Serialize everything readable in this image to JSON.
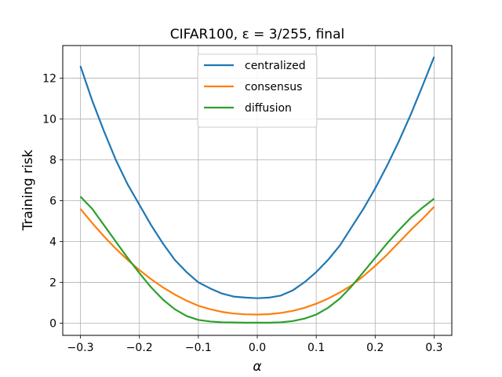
{
  "chart_data": {
    "type": "line",
    "title": "CIFAR100, ε = 3/255, final",
    "xlabel": "α",
    "ylabel": "Training risk",
    "xlim": [
      -0.33,
      0.33
    ],
    "ylim": [
      -0.6,
      13.6
    ],
    "xticks": [
      -0.3,
      -0.2,
      -0.1,
      0.0,
      0.1,
      0.2,
      0.3
    ],
    "xtick_labels": [
      "−0.3",
      "−0.2",
      "−0.1",
      "0.0",
      "0.1",
      "0.2",
      "0.3"
    ],
    "yticks": [
      0,
      2,
      4,
      6,
      8,
      10,
      12
    ],
    "ytick_labels": [
      "0",
      "2",
      "4",
      "6",
      "8",
      "10",
      "12"
    ],
    "grid": true,
    "legend_position": "top-center",
    "x": [
      -0.3,
      -0.28,
      -0.26,
      -0.24,
      -0.22,
      -0.2,
      -0.18,
      -0.16,
      -0.14,
      -0.12,
      -0.1,
      -0.08,
      -0.06,
      -0.04,
      -0.02,
      0.0,
      0.02,
      0.04,
      0.06,
      0.08,
      0.1,
      0.12,
      0.14,
      0.16,
      0.18,
      0.2,
      0.22,
      0.24,
      0.26,
      0.28,
      0.3
    ],
    "series": [
      {
        "name": "centralized",
        "color": "#1f77b4",
        "values": [
          12.6,
          10.9,
          9.4,
          8.0,
          6.8,
          5.8,
          4.8,
          3.9,
          3.1,
          2.5,
          2.0,
          1.7,
          1.45,
          1.3,
          1.25,
          1.22,
          1.25,
          1.35,
          1.6,
          2.0,
          2.5,
          3.1,
          3.8,
          4.7,
          5.6,
          6.6,
          7.7,
          8.9,
          10.2,
          11.6,
          13.05
        ]
      },
      {
        "name": "consensus",
        "color": "#ff7f0e",
        "values": [
          5.6,
          4.9,
          4.25,
          3.65,
          3.1,
          2.6,
          2.15,
          1.75,
          1.4,
          1.1,
          0.85,
          0.68,
          0.55,
          0.47,
          0.43,
          0.42,
          0.44,
          0.5,
          0.6,
          0.75,
          0.95,
          1.2,
          1.5,
          1.85,
          2.3,
          2.8,
          3.35,
          3.95,
          4.55,
          5.1,
          5.7
        ]
      },
      {
        "name": "diffusion",
        "color": "#2ca02c",
        "values": [
          6.2,
          5.6,
          4.8,
          4.0,
          3.2,
          2.45,
          1.75,
          1.15,
          0.68,
          0.35,
          0.16,
          0.08,
          0.04,
          0.03,
          0.02,
          0.02,
          0.02,
          0.04,
          0.1,
          0.22,
          0.42,
          0.75,
          1.2,
          1.8,
          2.5,
          3.2,
          3.9,
          4.55,
          5.15,
          5.65,
          6.1
        ]
      }
    ]
  }
}
